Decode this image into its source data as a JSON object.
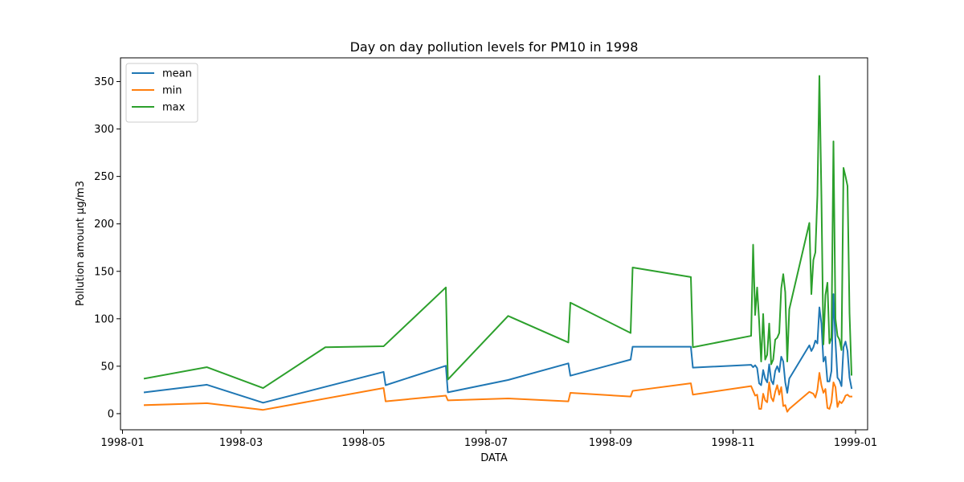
{
  "chart_data": {
    "type": "line",
    "title": "Day on day pollution levels for PM10 in 1998",
    "xlabel": "DATA",
    "ylabel": "Pollution amount µg/m3",
    "xlim": [
      "1997-12-31",
      "1999-01-07"
    ],
    "ylim": [
      -17,
      375
    ],
    "x_ticks": [
      "1998-01-01",
      "1998-03-01",
      "1998-05-01",
      "1998-07-01",
      "1998-09-01",
      "1998-11-01",
      "1999-01-01"
    ],
    "x_tick_labels": [
      "1998-01",
      "1998-03",
      "1998-05",
      "1998-07",
      "1998-09",
      "1998-11",
      "1999-01"
    ],
    "y_ticks": [
      0,
      50,
      100,
      150,
      200,
      250,
      300,
      350
    ],
    "y_tick_labels": [
      "0",
      "50",
      "100",
      "150",
      "200",
      "250",
      "300",
      "350"
    ],
    "grid": false,
    "legend_position": "top-left",
    "series": [
      {
        "name": "mean",
        "color": "#1f77b4",
        "points": [
          [
            "1998-01-12",
            22.5
          ],
          [
            "1998-02-12",
            30.5
          ],
          [
            "1998-03-12",
            11.5
          ],
          [
            "1998-05-11",
            44
          ],
          [
            "1998-05-12",
            30
          ],
          [
            "1998-06-11",
            50.5
          ],
          [
            "1998-06-12",
            22.5
          ],
          [
            "1998-07-12",
            35.5
          ],
          [
            "1998-08-11",
            53
          ],
          [
            "1998-08-12",
            40
          ],
          [
            "1998-09-11",
            57
          ],
          [
            "1998-09-12",
            70.5
          ],
          [
            "1998-10-11",
            70.5
          ],
          [
            "1998-10-12",
            48.5
          ],
          [
            "1998-11-10",
            51.5
          ],
          [
            "1998-11-11",
            49
          ],
          [
            "1998-11-12",
            51
          ],
          [
            "1998-11-13",
            48
          ],
          [
            "1998-11-14",
            32
          ],
          [
            "1998-11-15",
            30
          ],
          [
            "1998-11-16",
            46
          ],
          [
            "1998-11-17",
            37
          ],
          [
            "1998-11-18",
            33
          ],
          [
            "1998-11-19",
            52
          ],
          [
            "1998-11-20",
            35
          ],
          [
            "1998-11-21",
            31
          ],
          [
            "1998-11-22",
            45
          ],
          [
            "1998-11-23",
            50
          ],
          [
            "1998-11-24",
            44
          ],
          [
            "1998-11-25",
            60
          ],
          [
            "1998-11-26",
            55
          ],
          [
            "1998-11-27",
            33
          ],
          [
            "1998-11-28",
            22
          ],
          [
            "1998-11-29",
            37
          ],
          [
            "1998-12-09",
            72
          ],
          [
            "1998-12-10",
            66
          ],
          [
            "1998-12-11",
            70
          ],
          [
            "1998-12-12",
            77
          ],
          [
            "1998-12-13",
            74
          ],
          [
            "1998-12-14",
            112
          ],
          [
            "1998-12-15",
            95
          ],
          [
            "1998-12-16",
            55
          ],
          [
            "1998-12-17",
            60
          ],
          [
            "1998-12-18",
            34
          ],
          [
            "1998-12-19",
            34
          ],
          [
            "1998-12-20",
            45
          ],
          [
            "1998-12-21",
            126
          ],
          [
            "1998-12-22",
            76
          ],
          [
            "1998-12-23",
            38
          ],
          [
            "1998-12-24",
            35
          ],
          [
            "1998-12-25",
            29
          ],
          [
            "1998-12-26",
            70
          ],
          [
            "1998-12-27",
            76
          ],
          [
            "1998-12-28",
            66
          ],
          [
            "1998-12-29",
            38
          ],
          [
            "1998-12-30",
            27
          ]
        ]
      },
      {
        "name": "min",
        "color": "#ff7f0e",
        "points": [
          [
            "1998-01-12",
            9
          ],
          [
            "1998-02-12",
            11
          ],
          [
            "1998-03-12",
            4
          ],
          [
            "1998-05-11",
            27
          ],
          [
            "1998-05-12",
            13
          ],
          [
            "1998-06-11",
            19
          ],
          [
            "1998-06-12",
            14
          ],
          [
            "1998-07-12",
            16
          ],
          [
            "1998-08-11",
            13
          ],
          [
            "1998-08-12",
            22
          ],
          [
            "1998-09-11",
            18
          ],
          [
            "1998-09-12",
            24
          ],
          [
            "1998-10-11",
            32
          ],
          [
            "1998-10-12",
            20
          ],
          [
            "1998-11-10",
            29
          ],
          [
            "1998-11-11",
            24
          ],
          [
            "1998-11-12",
            19
          ],
          [
            "1998-11-13",
            20
          ],
          [
            "1998-11-14",
            5
          ],
          [
            "1998-11-15",
            5
          ],
          [
            "1998-11-16",
            21
          ],
          [
            "1998-11-17",
            14
          ],
          [
            "1998-11-18",
            12
          ],
          [
            "1998-11-19",
            33
          ],
          [
            "1998-11-20",
            17
          ],
          [
            "1998-11-21",
            13
          ],
          [
            "1998-11-22",
            23
          ],
          [
            "1998-11-23",
            30
          ],
          [
            "1998-11-24",
            20
          ],
          [
            "1998-11-25",
            28
          ],
          [
            "1998-11-26",
            8
          ],
          [
            "1998-11-27",
            9
          ],
          [
            "1998-11-28",
            2
          ],
          [
            "1998-11-29",
            5
          ],
          [
            "1998-12-09",
            23
          ],
          [
            "1998-12-10",
            22
          ],
          [
            "1998-12-11",
            21
          ],
          [
            "1998-12-12",
            17
          ],
          [
            "1998-12-13",
            25
          ],
          [
            "1998-12-14",
            43
          ],
          [
            "1998-12-15",
            30
          ],
          [
            "1998-12-16",
            22
          ],
          [
            "1998-12-17",
            26
          ],
          [
            "1998-12-18",
            6
          ],
          [
            "1998-12-19",
            5
          ],
          [
            "1998-12-20",
            12
          ],
          [
            "1998-12-21",
            33
          ],
          [
            "1998-12-22",
            28
          ],
          [
            "1998-12-23",
            7
          ],
          [
            "1998-12-24",
            13
          ],
          [
            "1998-12-25",
            11
          ],
          [
            "1998-12-26",
            14
          ],
          [
            "1998-12-27",
            19
          ],
          [
            "1998-12-28",
            20
          ],
          [
            "1998-12-29",
            18
          ],
          [
            "1998-12-30",
            18
          ]
        ]
      },
      {
        "name": "max",
        "color": "#2ca02c",
        "points": [
          [
            "1998-01-12",
            37
          ],
          [
            "1998-02-12",
            49
          ],
          [
            "1998-03-12",
            27
          ],
          [
            "1998-04-12",
            70
          ],
          [
            "1998-05-11",
            71
          ],
          [
            "1998-06-11",
            133
          ],
          [
            "1998-06-12",
            36
          ],
          [
            "1998-07-12",
            103
          ],
          [
            "1998-08-11",
            75
          ],
          [
            "1998-08-12",
            117
          ],
          [
            "1998-09-11",
            85
          ],
          [
            "1998-09-12",
            154
          ],
          [
            "1998-10-11",
            144
          ],
          [
            "1998-10-12",
            70
          ],
          [
            "1998-11-10",
            82
          ],
          [
            "1998-11-11",
            178
          ],
          [
            "1998-11-12",
            104
          ],
          [
            "1998-11-13",
            133
          ],
          [
            "1998-11-14",
            97
          ],
          [
            "1998-11-15",
            55
          ],
          [
            "1998-11-16",
            105
          ],
          [
            "1998-11-17",
            57
          ],
          [
            "1998-11-18",
            62
          ],
          [
            "1998-11-19",
            95
          ],
          [
            "1998-11-20",
            52
          ],
          [
            "1998-11-21",
            57
          ],
          [
            "1998-11-22",
            78
          ],
          [
            "1998-11-23",
            80
          ],
          [
            "1998-11-24",
            85
          ],
          [
            "1998-11-25",
            132
          ],
          [
            "1998-11-26",
            147
          ],
          [
            "1998-11-27",
            128
          ],
          [
            "1998-11-28",
            55
          ],
          [
            "1998-11-29",
            110
          ],
          [
            "1998-12-09",
            201
          ],
          [
            "1998-12-10",
            126
          ],
          [
            "1998-12-11",
            162
          ],
          [
            "1998-12-12",
            170
          ],
          [
            "1998-12-13",
            230
          ],
          [
            "1998-12-14",
            356
          ],
          [
            "1998-12-15",
            230
          ],
          [
            "1998-12-16",
            73
          ],
          [
            "1998-12-17",
            125
          ],
          [
            "1998-12-18",
            138
          ],
          [
            "1998-12-19",
            74
          ],
          [
            "1998-12-20",
            80
          ],
          [
            "1998-12-21",
            287
          ],
          [
            "1998-12-22",
            100
          ],
          [
            "1998-12-23",
            82
          ],
          [
            "1998-12-24",
            78
          ],
          [
            "1998-12-25",
            67
          ],
          [
            "1998-12-26",
            259
          ],
          [
            "1998-12-27",
            250
          ],
          [
            "1998-12-28",
            240
          ],
          [
            "1998-12-29",
            106
          ],
          [
            "1998-12-30",
            41
          ]
        ]
      }
    ]
  }
}
